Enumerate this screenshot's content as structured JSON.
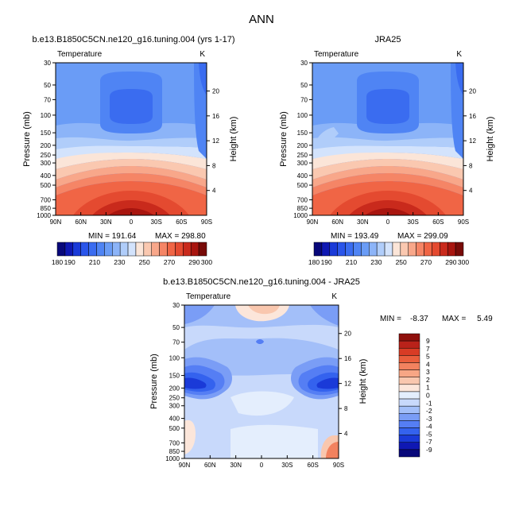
{
  "figure": {
    "main_title": "ANN",
    "colorscale": {
      "abs": [
        "#08087a",
        "#0f18b3",
        "#1a3ad8",
        "#2a55ea",
        "#3a6cf0",
        "#4f84f4",
        "#6a9cf6",
        "#8cb4f8",
        "#b0cdfa",
        "#d3e3fc",
        "#fbe5d8",
        "#fac8b0",
        "#f8a78a",
        "#f58566",
        "#f06545",
        "#e44a30",
        "#c92a1c",
        "#a8150f",
        "#780b08"
      ],
      "diff": [
        "#08087a",
        "#0f18b3",
        "#1a3ad8",
        "#3462ee",
        "#557ef4",
        "#7a9df6",
        "#a3bff9",
        "#c8d9fb",
        "#e4eefd",
        "#fce6da",
        "#f9c7ae",
        "#f7a685",
        "#f2825f",
        "#e95e3c",
        "#d83c25",
        "#b9221a",
        "#8f100c"
      ]
    }
  },
  "chart_data": [
    {
      "type": "heatmap",
      "panel": "model",
      "title": "b.e13.B1850C5CN.ne120_g16.tuning.004 (yrs 1-17)",
      "variable": "Temperature",
      "units": "K",
      "xlabel": "",
      "ylabel": "Pressure (mb)",
      "y2label": "Height (km)",
      "xticks": [
        "90N",
        "60N",
        "30N",
        "0",
        "30S",
        "60S",
        "90S"
      ],
      "yticks": [
        30,
        50,
        70,
        100,
        150,
        200,
        250,
        300,
        400,
        500,
        700,
        850,
        1000
      ],
      "y2ticks": [
        4,
        8,
        12,
        16,
        20
      ],
      "ylim": [
        30,
        1000
      ],
      "yscale": "log",
      "min_label": "MIN = 191.64",
      "max_label": "MAX = 298.80",
      "min": 191.64,
      "max": 298.8,
      "colorbar_labels": [
        "180",
        "190",
        "210",
        "230",
        "250",
        "270",
        "290",
        "300"
      ],
      "colorbar_levels": [
        180,
        185,
        190,
        195,
        200,
        205,
        210,
        215,
        220,
        225,
        230,
        235,
        240,
        245,
        250,
        255,
        260,
        265,
        270,
        275,
        280,
        285,
        290,
        295,
        300
      ]
    },
    {
      "type": "heatmap",
      "panel": "obs",
      "title": "JRA25",
      "variable": "Temperature",
      "units": "K",
      "xlabel": "",
      "ylabel": "Pressure (mb)",
      "y2label": "Height (km)",
      "xticks": [
        "90N",
        "60N",
        "30N",
        "0",
        "30S",
        "60S",
        "90S"
      ],
      "yticks": [
        30,
        50,
        70,
        100,
        150,
        200,
        250,
        300,
        400,
        500,
        700,
        850,
        1000
      ],
      "y2ticks": [
        4,
        8,
        12,
        16,
        20
      ],
      "ylim": [
        30,
        1000
      ],
      "yscale": "log",
      "min_label": "MIN = 193.49",
      "max_label": "MAX = 299.09",
      "min": 193.49,
      "max": 299.09,
      "colorbar_labels": [
        "180",
        "190",
        "210",
        "230",
        "250",
        "270",
        "290",
        "300"
      ],
      "colorbar_levels": [
        180,
        185,
        190,
        195,
        200,
        205,
        210,
        215,
        220,
        225,
        230,
        235,
        240,
        245,
        250,
        255,
        260,
        265,
        270,
        275,
        280,
        285,
        290,
        295,
        300
      ]
    },
    {
      "type": "heatmap",
      "panel": "diff",
      "title": "b.e13.B1850C5CN.ne120_g16.tuning.004 - JRA25",
      "variable": "Temperature",
      "units": "K",
      "xlabel": "",
      "ylabel": "Pressure (mb)",
      "y2label": "Height (km)",
      "xticks": [
        "90N",
        "60N",
        "30N",
        "0",
        "30S",
        "60S",
        "90S"
      ],
      "yticks": [
        30,
        50,
        70,
        100,
        150,
        200,
        250,
        300,
        400,
        500,
        700,
        850,
        1000
      ],
      "y2ticks": [
        4,
        8,
        12,
        16,
        20
      ],
      "ylim": [
        30,
        1000
      ],
      "yscale": "log",
      "min_label": "MIN =    -8.37",
      "max_label": "MAX =     5.49",
      "min": -8.37,
      "max": 5.49,
      "colorbar_labels": [
        "9",
        "7",
        "5",
        "4",
        "3",
        "2",
        "1",
        "0",
        "-1",
        "-2",
        "-3",
        "-4",
        "-5",
        "-7",
        "-9"
      ],
      "colorbar_levels": [
        9,
        7,
        5,
        4,
        3,
        2,
        1,
        0,
        -1,
        -2,
        -3,
        -4,
        -5,
        -7,
        -9
      ]
    }
  ]
}
